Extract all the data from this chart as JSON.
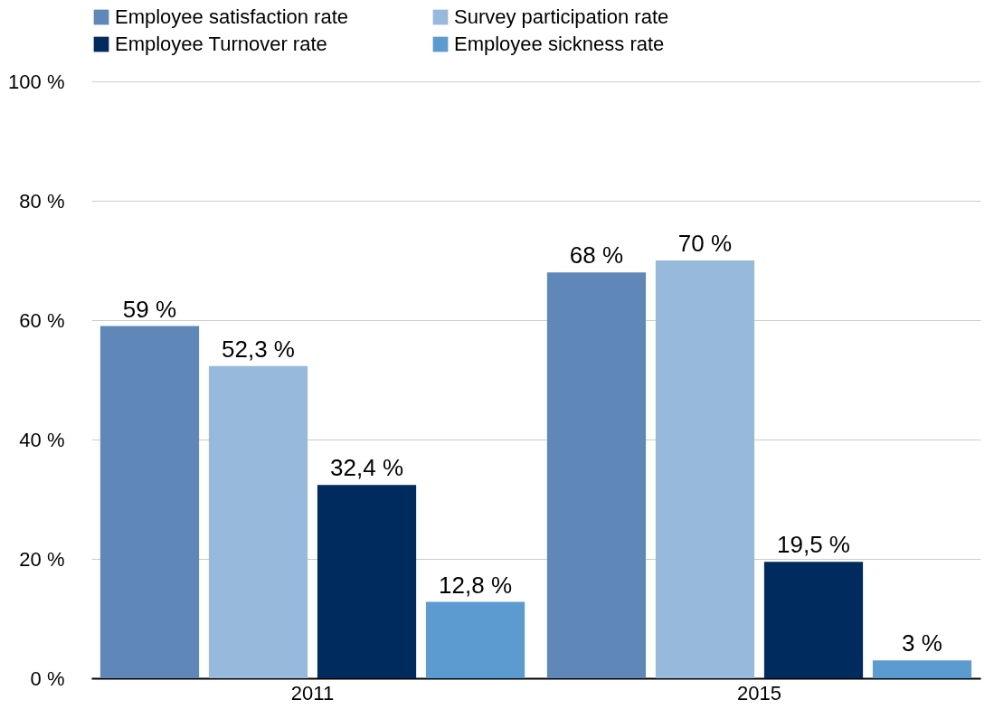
{
  "chart_data": {
    "type": "bar",
    "categories": [
      "2011",
      "2015"
    ],
    "series": [
      {
        "name": "Employee satisfaction rate",
        "color": "#5f88b9",
        "values": [
          59,
          68
        ],
        "value_labels": [
          "59 %",
          "68 %"
        ]
      },
      {
        "name": "Survey participation rate",
        "color": "#97b9db",
        "values": [
          52.3,
          70
        ],
        "value_labels": [
          "52,3 %",
          "70 %"
        ]
      },
      {
        "name": "Employee Turnover rate",
        "color": "#002b5e",
        "values": [
          32.4,
          19.5
        ],
        "value_labels": [
          "32,4 %",
          "19,5 %"
        ]
      },
      {
        "name": "Employee sickness rate",
        "color": "#5b9bd0",
        "values": [
          12.8,
          3
        ],
        "value_labels": [
          "12,8 %",
          "3 %"
        ]
      }
    ],
    "ylim": [
      0,
      100
    ],
    "yticks": [
      {
        "value": 0,
        "label": "0 %"
      },
      {
        "value": 20,
        "label": "20 %"
      },
      {
        "value": 40,
        "label": "40 %"
      },
      {
        "value": 60,
        "label": "60 %"
      },
      {
        "value": 80,
        "label": "80 %"
      },
      {
        "value": 100,
        "label": "100 %"
      }
    ],
    "grid": "y",
    "legend": "top"
  }
}
